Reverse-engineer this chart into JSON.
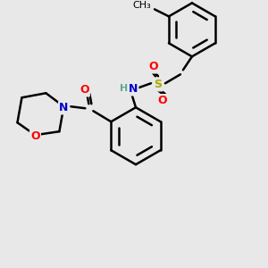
{
  "bg_color": "#e8e8e8",
  "line_color": "#000000",
  "line_width": 1.8,
  "atom_colors": {
    "N": "#0000cc",
    "O": "#ff0000",
    "S": "#aaaa00",
    "H": "#5aaa8a"
  },
  "font_size": 9,
  "fig_size": [
    3.0,
    3.0
  ],
  "dpi": 100
}
